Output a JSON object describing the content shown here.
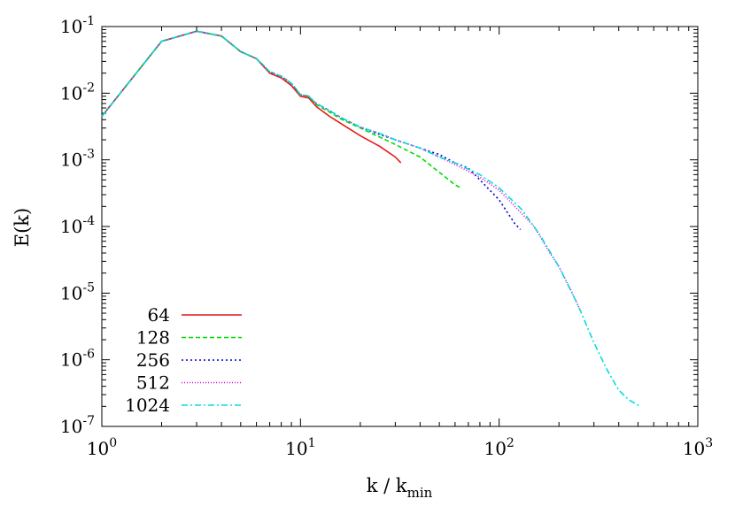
{
  "chart_data": {
    "type": "line",
    "xlabel": "k / k",
    "xlabel_sub": "min",
    "ylabel": "E(k)",
    "x_scale": "log",
    "y_scale": "log",
    "xlim": [
      1,
      1000
    ],
    "ylim": [
      1e-07,
      0.1
    ],
    "grid": false,
    "legend_position": "bottom-left",
    "x_ticks": [
      {
        "value": 1,
        "base": "10",
        "exp": "0"
      },
      {
        "value": 10,
        "base": "10",
        "exp": "1"
      },
      {
        "value": 100,
        "base": "10",
        "exp": "2"
      },
      {
        "value": 1000,
        "base": "10",
        "exp": "3"
      }
    ],
    "y_ticks": [
      {
        "value": 1e-07,
        "base": "10",
        "exp": "-7"
      },
      {
        "value": 1e-06,
        "base": "10",
        "exp": "-6"
      },
      {
        "value": 1e-05,
        "base": "10",
        "exp": "-5"
      },
      {
        "value": 0.0001,
        "base": "10",
        "exp": "-4"
      },
      {
        "value": 0.001,
        "base": "10",
        "exp": "-3"
      },
      {
        "value": 0.01,
        "base": "10",
        "exp": "-2"
      },
      {
        "value": 0.1,
        "base": "10",
        "exp": "-1"
      }
    ],
    "series": [
      {
        "name": "64",
        "color": "#e41a1c",
        "dash": "",
        "x": [
          1,
          2,
          3,
          4,
          5,
          6,
          7,
          8,
          9,
          10,
          11,
          12,
          14,
          16,
          20,
          25,
          30,
          32
        ],
        "y": [
          0.0045,
          0.06,
          0.085,
          0.072,
          0.042,
          0.033,
          0.02,
          0.017,
          0.013,
          0.009,
          0.0085,
          0.0063,
          0.0045,
          0.0035,
          0.0023,
          0.0016,
          0.0011,
          0.0009
        ]
      },
      {
        "name": "128",
        "color": "#00dd00",
        "dash": "5,3",
        "x": [
          1,
          2,
          3,
          4,
          5,
          6,
          7,
          8,
          9,
          10,
          11,
          12,
          14,
          16,
          20,
          25,
          30,
          40,
          50,
          60,
          64
        ],
        "y": [
          0.0045,
          0.06,
          0.085,
          0.072,
          0.042,
          0.033,
          0.021,
          0.018,
          0.014,
          0.0095,
          0.009,
          0.0068,
          0.0052,
          0.0041,
          0.003,
          0.0022,
          0.0017,
          0.0011,
          0.00065,
          0.00042,
          0.00038
        ]
      },
      {
        "name": "256",
        "color": "#0000cc",
        "dash": "2,3",
        "x": [
          1,
          2,
          3,
          4,
          5,
          6,
          7,
          8,
          9,
          10,
          11,
          12,
          14,
          16,
          20,
          25,
          30,
          40,
          50,
          60,
          70,
          80,
          100,
          120,
          128
        ],
        "y": [
          0.0045,
          0.06,
          0.085,
          0.072,
          0.042,
          0.033,
          0.021,
          0.018,
          0.014,
          0.0095,
          0.009,
          0.007,
          0.0055,
          0.0043,
          0.0031,
          0.0024,
          0.002,
          0.0015,
          0.0012,
          0.0009,
          0.00075,
          0.0005,
          0.00025,
          0.00011,
          9e-05
        ]
      },
      {
        "name": "512",
        "color": "#dd00dd",
        "dash": "1,2",
        "x": [
          1,
          2,
          3,
          4,
          5,
          6,
          7,
          8,
          9,
          10,
          11,
          12,
          14,
          16,
          20,
          25,
          30,
          40,
          50,
          60,
          80,
          100,
          120,
          150,
          180,
          200,
          230,
          256
        ],
        "y": [
          0.0045,
          0.06,
          0.085,
          0.072,
          0.042,
          0.033,
          0.021,
          0.018,
          0.014,
          0.0095,
          0.009,
          0.007,
          0.0055,
          0.0043,
          0.0031,
          0.0025,
          0.002,
          0.0015,
          0.0011,
          0.00085,
          0.00055,
          0.00035,
          0.0002,
          0.0001,
          4e-05,
          2.5e-05,
          1.1e-05,
          5.5e-06
        ]
      },
      {
        "name": "1024",
        "color": "#00dddd",
        "dash": "7,3,2,3",
        "x": [
          1,
          2,
          3,
          4,
          5,
          6,
          7,
          8,
          9,
          10,
          11,
          12,
          14,
          16,
          20,
          25,
          30,
          40,
          50,
          60,
          80,
          100,
          130,
          160,
          200,
          250,
          300,
          350,
          400,
          450,
          512
        ],
        "y": [
          0.0045,
          0.06,
          0.085,
          0.072,
          0.042,
          0.033,
          0.021,
          0.018,
          0.014,
          0.0095,
          0.009,
          0.007,
          0.0055,
          0.0043,
          0.0031,
          0.0025,
          0.002,
          0.0015,
          0.0011,
          0.0009,
          0.0006,
          0.00038,
          0.00018,
          7.5e-05,
          2.5e-05,
          6.5e-06,
          1.8e-06,
          7e-07,
          3.5e-07,
          2.5e-07,
          2e-07
        ]
      }
    ]
  }
}
